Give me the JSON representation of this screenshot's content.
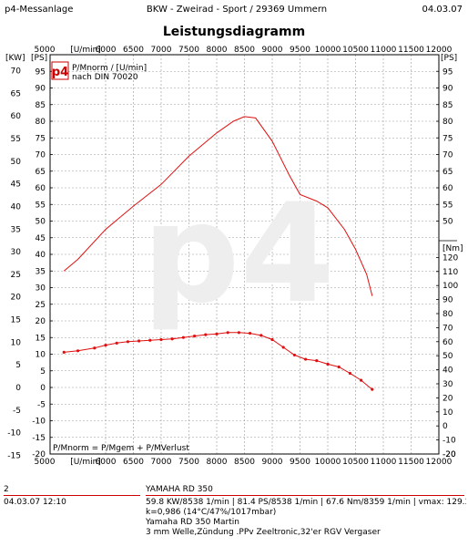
{
  "header": {
    "left": "p4-Messanlage",
    "center": "BKW - Zweirad - Sport   /   29369 Ummern",
    "right": "04.03.07"
  },
  "footer": {
    "run_number": "2",
    "datetime": "04.03.07  12:10",
    "model": "YAMAHA RD 350",
    "results": "59.8 KW/8538 1/min  |  81.4 PS/8538 1/min  |  67.6 Nm/8359 1/min  | vmax: 129.3 km/h",
    "correction": "k=0,986 (14°C/47%/1017mbar)",
    "rider": "Yamaha RD 350 Martin",
    "notes": "3 mm Welle,Zündung .PPv Zeeltronic,32'er RGV Vergaser"
  },
  "chart_data": {
    "type": "line",
    "title": "Leistungsdiagramm",
    "logo": "p4",
    "watermark": "p4",
    "legend_lines": [
      "P/Mnorm / [U/min]",
      "nach DIN 70020"
    ],
    "bottom_note": "P/Mnorm = P/Mgem + P/MVerlust",
    "x_axis_label": "[U/min]",
    "xlim": [
      5000,
      12000
    ],
    "x_ticks": [
      "5000",
      "6000",
      "6500",
      "7000",
      "7500",
      "8000",
      "8500",
      "9000",
      "9500",
      "10000",
      "10500",
      "11000",
      "11500",
      "12000"
    ],
    "left_axis": {
      "labels": [
        "[KW]",
        "[PS]"
      ],
      "kw_ticks": [
        "70",
        "65",
        "60",
        "55",
        "50",
        "45",
        "40",
        "35",
        "30",
        "25",
        "20",
        "15",
        "10",
        "5",
        "0",
        "-5",
        "-10",
        "-15"
      ],
      "ps_ticks": [
        "95",
        "90",
        "85",
        "80",
        "75",
        "70",
        "65",
        "60",
        "55",
        "50",
        "45",
        "40",
        "35",
        "30",
        "25",
        "20",
        "15",
        "10",
        "5",
        "0",
        "-5",
        "-10",
        "-15",
        "-20"
      ],
      "kw_ticks_note": "KW scale sits on PS scale (1 KW = 1.36 PS)"
    },
    "right_axis": {
      "label_top": "[PS]",
      "ps_ticks": [
        "95",
        "90",
        "85",
        "80",
        "75",
        "70",
        "65",
        "60",
        "55",
        "50",
        "45",
        "40",
        "35",
        "30",
        "25",
        "20",
        "15",
        "10",
        "5",
        "0",
        "-5",
        "-10",
        "-15"
      ],
      "nm_label": "[Nm]",
      "nm_ticks": [
        "120",
        "110",
        "100",
        "90",
        "80",
        "70",
        "60",
        "50",
        "40",
        "30",
        "20",
        "10",
        "0",
        "-10",
        "-20"
      ],
      "nm_bottom": "-20"
    },
    "ylim_ps": [
      -20,
      100
    ],
    "ylim_nm": [
      -20,
      130
    ],
    "series": [
      {
        "name": "P/Mnorm / [U/min]",
        "unit": "PS",
        "color": "#e01010",
        "x": [
          5250,
          5500,
          6000,
          6500,
          7000,
          7500,
          8000,
          8300,
          8500,
          8700,
          9000,
          9300,
          9500,
          9800,
          10000,
          10300,
          10500,
          10700,
          10800
        ],
        "y": [
          35,
          38.5,
          47.5,
          54.5,
          61,
          69.5,
          76.5,
          80,
          81.4,
          81,
          74,
          64,
          58,
          56,
          54,
          47.5,
          41.5,
          34,
          27.5
        ]
      },
      {
        "name": "Drehmoment",
        "unit": "Nm",
        "color": "#e01010",
        "x": [
          5250,
          5500,
          5800,
          6000,
          6200,
          6400,
          6600,
          6800,
          7000,
          7200,
          7400,
          7600,
          7800,
          8000,
          8200,
          8400,
          8600,
          8800,
          9000,
          9200,
          9400,
          9600,
          9800,
          10000,
          10200,
          10400,
          10600,
          10800
        ],
        "y": [
          52.5,
          53.5,
          55.5,
          57.5,
          59,
          60,
          60.5,
          61,
          61.5,
          62,
          63,
          64,
          65,
          65.5,
          66.5,
          66.5,
          66,
          64.5,
          61.5,
          56,
          50.5,
          47.5,
          46.5,
          44,
          42,
          37.5,
          32.5,
          26
        ]
      }
    ],
    "grid": true
  }
}
